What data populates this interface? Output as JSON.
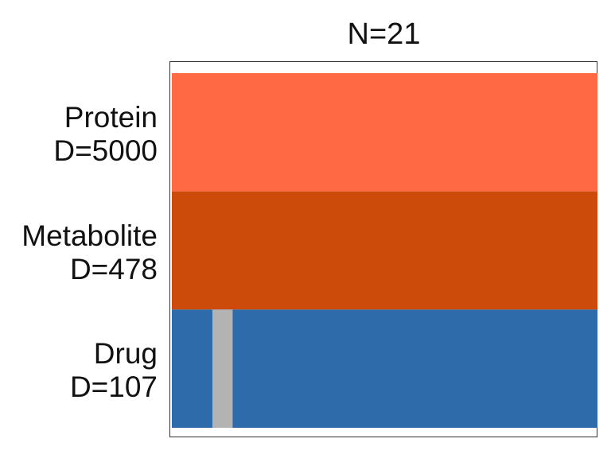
{
  "chart_data": {
    "type": "heatmap",
    "title": "N=21",
    "columns": 21,
    "rows": [
      {
        "name": "Protein",
        "dim_label": "D=5000",
        "color": "#FF6A45",
        "missing_columns": []
      },
      {
        "name": "Metabolite",
        "dim_label": "D=478",
        "color": "#CC4A0A",
        "missing_columns": []
      },
      {
        "name": "Drug",
        "dim_label": "D=107",
        "color": "#2E6BAA",
        "missing_columns": [
          2
        ]
      }
    ],
    "missing_color": "#B3B3B3",
    "grid": false
  }
}
